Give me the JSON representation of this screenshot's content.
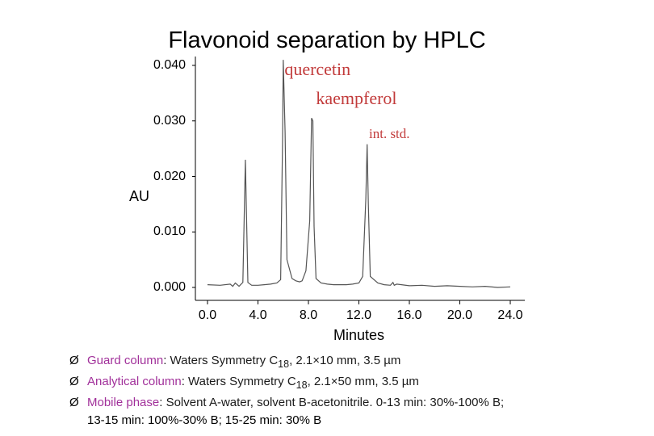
{
  "chart_data": {
    "type": "line",
    "title": "Flavonoid separation by HPLC",
    "xlabel": "Minutes",
    "ylabel": "AU",
    "xlim": [
      0.0,
      24.0
    ],
    "ylim": [
      0.0,
      0.04
    ],
    "xticks": [
      "0.0",
      "4.0",
      "8.0",
      "12.0",
      "16.0",
      "20.0",
      "24.0"
    ],
    "yticks": [
      "0.000",
      "0.010",
      "0.020",
      "0.030",
      "0.040"
    ],
    "grid": false,
    "series": [
      {
        "x": [
          0.0,
          1.0,
          1.8,
          2.0,
          2.2,
          2.5,
          2.8,
          3.0,
          3.2,
          3.5,
          4.0,
          4.5,
          5.0,
          5.5,
          5.8,
          5.95,
          6.0,
          6.15,
          6.3,
          6.7,
          7.0,
          7.3,
          7.5,
          7.8,
          8.1,
          8.25,
          8.35,
          8.45,
          8.6,
          9.0,
          9.5,
          10.0,
          10.5,
          11.0,
          11.5,
          12.0,
          12.3,
          12.55,
          12.65,
          12.75,
          12.9,
          13.5,
          14.0,
          14.5,
          14.7,
          14.8,
          15.0,
          16.0,
          17.0,
          18.0,
          19.0,
          20.0,
          21.0,
          22.0,
          23.0,
          24.0
        ],
        "y": [
          0.0005,
          0.0004,
          0.0006,
          0.0002,
          0.0008,
          0.0002,
          0.0009,
          0.023,
          0.0009,
          0.0004,
          0.0004,
          0.0005,
          0.0006,
          0.0008,
          0.0014,
          0.027,
          0.041,
          0.028,
          0.005,
          0.0016,
          0.0012,
          0.001,
          0.0012,
          0.003,
          0.012,
          0.0305,
          0.03,
          0.011,
          0.0016,
          0.0008,
          0.0006,
          0.0005,
          0.0005,
          0.0005,
          0.0006,
          0.0008,
          0.002,
          0.016,
          0.0258,
          0.015,
          0.002,
          0.0008,
          0.0005,
          0.0004,
          0.0009,
          0.0004,
          0.0006,
          0.0003,
          0.0004,
          0.0002,
          0.0003,
          0.0002,
          0.0001,
          0.0002,
          0.0,
          0.0001
        ]
      }
    ],
    "annotations": [
      {
        "text": "quercetin",
        "x": 6.1,
        "y": 0.0395,
        "size": 22
      },
      {
        "text": "kaempferol",
        "x": 8.6,
        "y": 0.0343,
        "size": 22
      },
      {
        "text": "int. std.",
        "x": 12.8,
        "y": 0.0278,
        "size": 17
      }
    ],
    "line_color": "#555555"
  },
  "notes": {
    "items": [
      {
        "label": "Guard column",
        "text": ": Waters Symmetry C",
        "sub": "18",
        "rest": ", 2.1×10 mm, 3.5 µm"
      },
      {
        "label": "Analytical column",
        "text": ": Waters Symmetry C",
        "sub": "18",
        "rest": ", 2.1×50 mm, 3.5 µm"
      },
      {
        "label": "Mobile phase",
        "text": ": Solvent A-water, solvent B-acetonitrile.  0-13 min: 30%-100% B;",
        "sub": "",
        "rest": ""
      }
    ],
    "continuation": "13-15 min: 100%-30% B; 15-25 min: 30% B",
    "arrow_glyph": "Ø"
  }
}
